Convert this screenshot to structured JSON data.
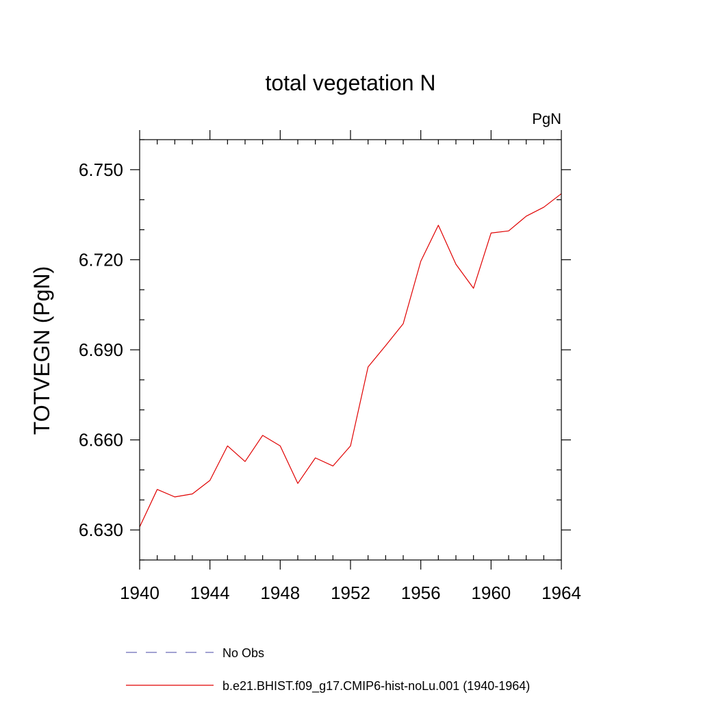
{
  "chart_data": {
    "type": "line",
    "title": "total vegetation N",
    "units_label": "PgN",
    "ylabel": "TOTVEGN  (PgN)",
    "xlabel": "",
    "xlim": [
      1940,
      1964
    ],
    "ylim": [
      6.62,
      6.76
    ],
    "x_ticks": [
      1940,
      1944,
      1948,
      1952,
      1956,
      1960,
      1964
    ],
    "x_tick_labels": [
      "1940",
      "1944",
      "1948",
      "1952",
      "1956",
      "1960",
      "1964"
    ],
    "y_ticks": [
      6.63,
      6.66,
      6.69,
      6.72,
      6.75
    ],
    "y_tick_labels": [
      "6.630",
      "6.660",
      "6.690",
      "6.720",
      "6.750"
    ],
    "grid": false,
    "legend_position": "bottom",
    "legend": [
      {
        "label": "No Obs",
        "color": "#6a6ab8",
        "style": "dashed"
      },
      {
        "label": "b.e21.BHIST.f09_g17.CMIP6-hist-noLu.001 (1940-1964)",
        "color": "#e00000",
        "style": "solid"
      }
    ],
    "series": [
      {
        "name": "b.e21.BHIST.f09_g17.CMIP6-hist-noLu.001 (1940-1964)",
        "color": "#e00000",
        "x": [
          1940,
          1941,
          1942,
          1943,
          1944,
          1945,
          1946,
          1947,
          1948,
          1949,
          1950,
          1951,
          1952,
          1953,
          1954,
          1955,
          1956,
          1957,
          1958,
          1959,
          1960,
          1961,
          1962,
          1963,
          1964
        ],
        "values": [
          6.631,
          6.6435,
          6.641,
          6.642,
          6.6465,
          6.658,
          6.6528,
          6.6615,
          6.658,
          6.6455,
          6.654,
          6.6513,
          6.658,
          6.6843,
          6.6914,
          6.6987,
          6.7195,
          6.7315,
          6.7185,
          6.7105,
          6.7289,
          6.7296,
          6.7345,
          6.7375,
          6.742
        ]
      }
    ]
  }
}
